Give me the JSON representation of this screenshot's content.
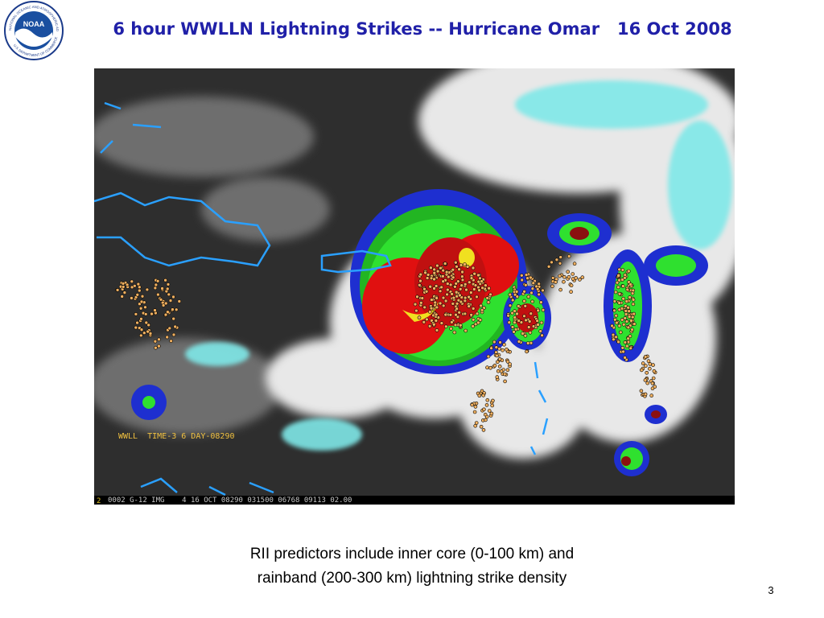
{
  "logo": {
    "label": "NOAA",
    "ring_top": "NATIONAL OCEANIC AND ATMOSPHERIC ADMINISTRATION",
    "ring_bottom": "U.S. DEPARTMENT OF COMMERCE"
  },
  "title": "6 hour WWLLN Lightning Strikes -- Hurricane Omar   16 Oct 2008",
  "image": {
    "overlay_label": "WWLL  TIME-3 6 DAY-08290",
    "footer_frame": "2",
    "footer": "0002 G-12 IMG    4 16 OCT 08290 031500 06768 09113 02.00"
  },
  "caption": [
    "RII predictors include inner core (0-100 km) and",
    "rainband (200-300 km) lightning strike density"
  ],
  "page_number": "3"
}
